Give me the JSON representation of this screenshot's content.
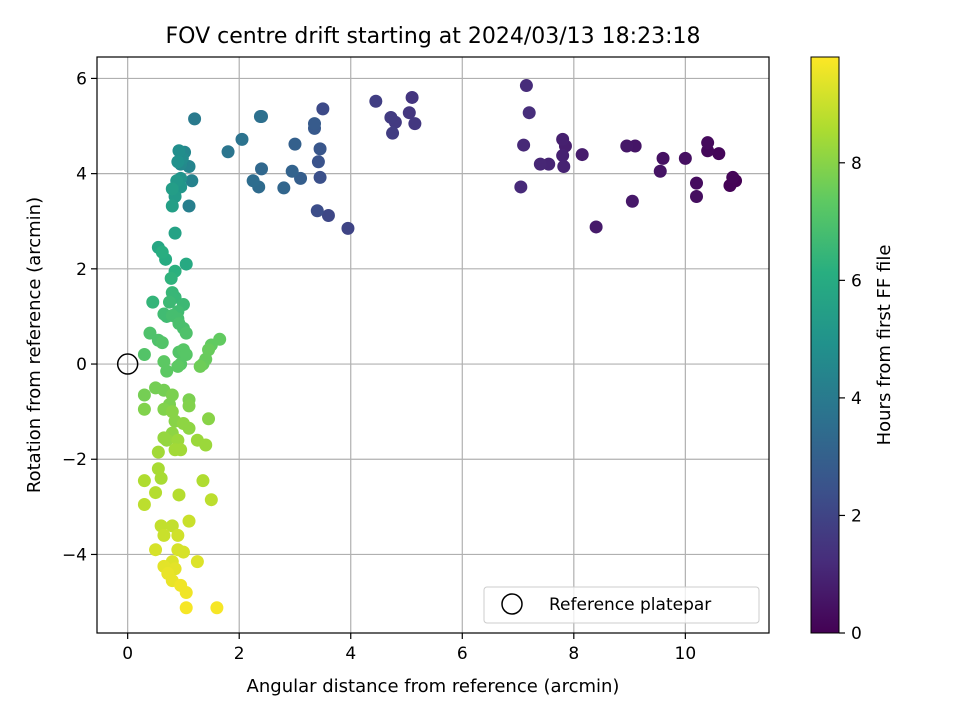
{
  "chart_data": {
    "type": "scatter",
    "title": "FOV centre drift starting at 2024/03/13 18:23:18",
    "xlabel": "Angular distance from reference (arcmin)",
    "ylabel": "Rotation from reference (arcmin)",
    "xlim": [
      -0.55,
      11.5
    ],
    "ylim": [
      -5.65,
      6.45
    ],
    "xticks": [
      0,
      2,
      4,
      6,
      8,
      10
    ],
    "yticks": [
      -4,
      -2,
      0,
      2,
      4,
      6
    ],
    "grid": true,
    "legend": {
      "placement": "lower-right",
      "entries": [
        "Reference platepar"
      ]
    },
    "reference": {
      "x": 0,
      "y": 0,
      "label": "Reference platepar"
    },
    "colorbar": {
      "label": "Hours from first FF file",
      "min": 0,
      "max": 9.8,
      "ticks": [
        0,
        2,
        4,
        6,
        8
      ],
      "colormap": "viridis"
    },
    "points": [
      [
        10.9,
        3.85,
        0.0
      ],
      [
        10.8,
        3.75,
        0.05
      ],
      [
        10.85,
        3.92,
        0.1
      ],
      [
        10.6,
        4.42,
        0.15
      ],
      [
        10.4,
        4.48,
        0.2
      ],
      [
        10.4,
        4.65,
        0.25
      ],
      [
        10.2,
        3.8,
        0.3
      ],
      [
        10.2,
        3.52,
        0.35
      ],
      [
        10.0,
        4.32,
        0.4
      ],
      [
        9.6,
        4.32,
        0.45
      ],
      [
        9.55,
        4.05,
        0.5
      ],
      [
        9.1,
        4.58,
        0.55
      ],
      [
        8.95,
        4.58,
        0.6
      ],
      [
        9.05,
        3.42,
        0.65
      ],
      [
        8.4,
        2.88,
        0.7
      ],
      [
        8.15,
        4.4,
        0.75
      ],
      [
        7.85,
        4.58,
        0.8
      ],
      [
        7.8,
        4.72,
        0.85
      ],
      [
        7.8,
        4.38,
        0.9
      ],
      [
        7.82,
        4.15,
        0.95
      ],
      [
        7.55,
        4.2,
        1.0
      ],
      [
        7.4,
        4.2,
        1.05
      ],
      [
        7.1,
        4.6,
        1.1
      ],
      [
        7.05,
        3.72,
        1.15
      ],
      [
        7.15,
        5.85,
        1.2
      ],
      [
        7.2,
        5.28,
        1.25
      ],
      [
        5.1,
        5.6,
        1.5
      ],
      [
        5.05,
        5.28,
        1.55
      ],
      [
        5.15,
        5.05,
        1.6
      ],
      [
        4.8,
        5.08,
        1.65
      ],
      [
        4.72,
        5.18,
        1.7
      ],
      [
        4.75,
        4.85,
        1.75
      ],
      [
        4.45,
        5.52,
        1.8
      ],
      [
        3.95,
        2.85,
        2.0
      ],
      [
        3.6,
        3.12,
        2.1
      ],
      [
        3.5,
        5.36,
        2.2
      ],
      [
        3.4,
        3.22,
        2.3
      ],
      [
        3.45,
        3.92,
        2.4
      ],
      [
        3.42,
        4.25,
        2.5
      ],
      [
        3.45,
        4.52,
        2.6
      ],
      [
        3.35,
        4.95,
        2.7
      ],
      [
        3.35,
        5.05,
        2.8
      ],
      [
        3.1,
        3.9,
        2.9
      ],
      [
        3.0,
        4.62,
        3.0
      ],
      [
        2.95,
        4.05,
        3.1
      ],
      [
        2.8,
        3.7,
        3.2
      ],
      [
        2.4,
        4.1,
        3.3
      ],
      [
        2.35,
        3.72,
        3.4
      ],
      [
        2.25,
        3.85,
        3.5
      ],
      [
        2.4,
        5.2,
        3.55
      ],
      [
        2.38,
        5.2,
        3.6
      ],
      [
        2.05,
        4.72,
        3.7
      ],
      [
        1.8,
        4.46,
        3.8
      ],
      [
        1.2,
        5.15,
        4.0
      ],
      [
        1.1,
        3.32,
        4.2
      ],
      [
        1.15,
        3.85,
        4.3
      ],
      [
        1.1,
        4.15,
        4.4
      ],
      [
        1.02,
        4.45,
        4.5
      ],
      [
        0.95,
        4.2,
        4.6
      ],
      [
        0.98,
        4.32,
        4.7
      ],
      [
        0.92,
        4.48,
        4.8
      ],
      [
        0.9,
        4.25,
        4.9
      ],
      [
        0.95,
        3.9,
        5.0
      ],
      [
        0.95,
        3.72,
        5.1
      ],
      [
        0.88,
        3.85,
        5.2
      ],
      [
        0.85,
        3.52,
        5.3
      ],
      [
        0.8,
        3.68,
        5.4
      ],
      [
        0.8,
        3.32,
        5.5
      ],
      [
        0.85,
        2.75,
        5.6
      ],
      [
        0.55,
        2.45,
        5.8
      ],
      [
        1.05,
        2.1,
        5.9
      ],
      [
        0.68,
        2.2,
        6.0
      ],
      [
        0.62,
        2.35,
        6.1
      ],
      [
        0.85,
        1.95,
        6.2
      ],
      [
        0.78,
        1.8,
        6.3
      ],
      [
        0.45,
        1.3,
        6.4
      ],
      [
        0.8,
        1.5,
        6.5
      ],
      [
        0.85,
        1.4,
        6.5
      ],
      [
        0.75,
        1.3,
        6.6
      ],
      [
        1.0,
        1.25,
        6.6
      ],
      [
        0.9,
        1.1,
        6.7
      ],
      [
        0.7,
        1.0,
        6.7
      ],
      [
        0.65,
        1.05,
        6.7
      ],
      [
        0.8,
        1.02,
        6.8
      ],
      [
        0.9,
        0.95,
        6.8
      ],
      [
        0.92,
        0.85,
        6.9
      ],
      [
        1.0,
        0.75,
        6.9
      ],
      [
        1.05,
        0.65,
        7.0
      ],
      [
        0.4,
        0.65,
        7.0
      ],
      [
        0.55,
        0.5,
        7.0
      ],
      [
        0.62,
        0.45,
        7.1
      ],
      [
        0.3,
        0.2,
        7.1
      ],
      [
        0.92,
        0.25,
        7.1
      ],
      [
        1.0,
        0.3,
        7.2
      ],
      [
        1.05,
        0.2,
        7.2
      ],
      [
        0.95,
        0.0,
        7.2
      ],
      [
        0.65,
        0.05,
        7.3
      ],
      [
        0.7,
        -0.15,
        7.3
      ],
      [
        0.9,
        -0.05,
        7.3
      ],
      [
        1.65,
        0.52,
        7.4
      ],
      [
        1.5,
        0.4,
        7.4
      ],
      [
        1.45,
        0.3,
        7.5
      ],
      [
        1.4,
        0.1,
        7.5
      ],
      [
        1.35,
        0.0,
        7.5
      ],
      [
        1.3,
        -0.05,
        7.6
      ],
      [
        0.5,
        -0.5,
        7.7
      ],
      [
        0.3,
        -0.65,
        7.7
      ],
      [
        0.65,
        -0.55,
        7.7
      ],
      [
        0.8,
        -0.65,
        7.8
      ],
      [
        0.75,
        -0.85,
        7.8
      ],
      [
        1.1,
        -0.75,
        7.8
      ],
      [
        1.1,
        -0.88,
        7.9
      ],
      [
        0.3,
        -0.95,
        7.9
      ],
      [
        0.65,
        -0.95,
        7.9
      ],
      [
        0.8,
        -1.0,
        8.0
      ],
      [
        1.45,
        -1.15,
        8.0
      ],
      [
        0.85,
        -1.2,
        8.0
      ],
      [
        1.0,
        -1.25,
        8.1
      ],
      [
        1.1,
        -1.35,
        8.1
      ],
      [
        0.8,
        -1.45,
        8.1
      ],
      [
        0.7,
        -1.6,
        8.2
      ],
      [
        0.65,
        -1.55,
        8.2
      ],
      [
        0.9,
        -1.6,
        8.3
      ],
      [
        1.25,
        -1.6,
        8.3
      ],
      [
        1.4,
        -1.7,
        8.3
      ],
      [
        0.55,
        -1.85,
        8.4
      ],
      [
        0.85,
        -1.8,
        8.4
      ],
      [
        0.95,
        -1.8,
        8.4
      ],
      [
        0.55,
        -2.2,
        8.5
      ],
      [
        0.6,
        -2.4,
        8.5
      ],
      [
        0.3,
        -2.45,
        8.6
      ],
      [
        1.35,
        -2.45,
        8.6
      ],
      [
        0.5,
        -2.7,
        8.7
      ],
      [
        0.92,
        -2.75,
        8.7
      ],
      [
        1.5,
        -2.85,
        8.8
      ],
      [
        0.3,
        -2.95,
        8.8
      ],
      [
        0.6,
        -3.4,
        8.9
      ],
      [
        0.8,
        -3.4,
        8.9
      ],
      [
        1.1,
        -3.3,
        9.0
      ],
      [
        0.65,
        -3.6,
        9.0
      ],
      [
        0.9,
        -3.6,
        9.1
      ],
      [
        0.5,
        -3.9,
        9.2
      ],
      [
        0.9,
        -3.9,
        9.2
      ],
      [
        1.0,
        -3.95,
        9.2
      ],
      [
        1.25,
        -4.15,
        9.3
      ],
      [
        0.8,
        -4.15,
        9.3
      ],
      [
        0.65,
        -4.25,
        9.4
      ],
      [
        0.85,
        -4.3,
        9.4
      ],
      [
        0.72,
        -4.4,
        9.5
      ],
      [
        0.8,
        -4.55,
        9.5
      ],
      [
        0.95,
        -4.65,
        9.6
      ],
      [
        1.05,
        -4.8,
        9.6
      ],
      [
        1.05,
        -5.12,
        9.7
      ],
      [
        1.6,
        -5.12,
        9.7
      ]
    ]
  }
}
